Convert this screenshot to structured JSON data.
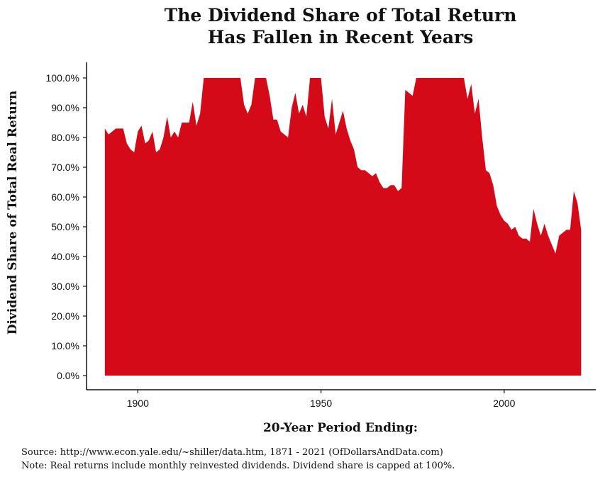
{
  "chart_data": {
    "type": "area",
    "title_line1": "The Dividend Share of Total Return",
    "title_line2": "Has Fallen in Recent Years",
    "xlabel": "20-Year Period Ending:",
    "ylabel": "Dividend Share of Total Real Return",
    "source": "Source:  http://www.econ.yale.edu/~shiller/data.htm, 1871 - 2021 (OfDollarsAndData.com)",
    "note": "Note:  Real returns include monthly reinvested dividends.  Dividend share is capped at 100%.",
    "color": "#d50a18",
    "xlim": [
      1886,
      2025
    ],
    "ylim": [
      0,
      1.0
    ],
    "x_ticks": [
      1900,
      1950,
      2000
    ],
    "x_tick_labels": [
      "1900",
      "1950",
      "2000"
    ],
    "y_ticks": [
      0,
      0.1,
      0.2,
      0.3,
      0.4,
      0.5,
      0.6,
      0.7,
      0.8,
      0.9,
      1.0
    ],
    "y_tick_labels": [
      "0.0%",
      "10.0%",
      "20.0%",
      "30.0%",
      "40.0%",
      "50.0%",
      "60.0%",
      "70.0%",
      "80.0%",
      "90.0%",
      "100.0%"
    ],
    "x": [
      1891,
      1892,
      1893,
      1894,
      1895,
      1896,
      1897,
      1898,
      1899,
      1900,
      1901,
      1902,
      1903,
      1904,
      1905,
      1906,
      1907,
      1908,
      1909,
      1910,
      1911,
      1912,
      1913,
      1914,
      1915,
      1916,
      1917,
      1918,
      1919,
      1920,
      1921,
      1922,
      1923,
      1924,
      1925,
      1926,
      1927,
      1928,
      1929,
      1930,
      1931,
      1932,
      1933,
      1934,
      1935,
      1936,
      1937,
      1938,
      1939,
      1940,
      1941,
      1942,
      1943,
      1944,
      1945,
      1946,
      1947,
      1948,
      1949,
      1950,
      1951,
      1952,
      1953,
      1954,
      1955,
      1956,
      1957,
      1958,
      1959,
      1960,
      1961,
      1962,
      1963,
      1964,
      1965,
      1966,
      1967,
      1968,
      1969,
      1970,
      1971,
      1972,
      1973,
      1974,
      1975,
      1976,
      1977,
      1978,
      1979,
      1980,
      1981,
      1982,
      1983,
      1984,
      1985,
      1986,
      1987,
      1988,
      1989,
      1990,
      1991,
      1992,
      1993,
      1994,
      1995,
      1996,
      1997,
      1998,
      1999,
      2000,
      2001,
      2002,
      2003,
      2004,
      2005,
      2006,
      2007,
      2008,
      2009,
      2010,
      2011,
      2012,
      2013,
      2014,
      2015,
      2016,
      2017,
      2018,
      2019,
      2020,
      2021
    ],
    "values": [
      0.83,
      0.81,
      0.82,
      0.83,
      0.83,
      0.83,
      0.78,
      0.76,
      0.75,
      0.82,
      0.84,
      0.78,
      0.79,
      0.82,
      0.75,
      0.76,
      0.8,
      0.87,
      0.8,
      0.82,
      0.8,
      0.85,
      0.85,
      0.85,
      0.92,
      0.84,
      0.88,
      1.0,
      1.0,
      1.0,
      1.0,
      1.0,
      1.0,
      1.0,
      1.0,
      1.0,
      1.0,
      1.0,
      0.91,
      0.88,
      0.91,
      1.0,
      1.0,
      1.0,
      1.0,
      0.94,
      0.86,
      0.86,
      0.82,
      0.81,
      0.8,
      0.9,
      0.95,
      0.88,
      0.91,
      0.87,
      1.0,
      1.0,
      1.0,
      1.0,
      0.87,
      0.83,
      0.93,
      0.81,
      0.85,
      0.89,
      0.83,
      0.79,
      0.76,
      0.7,
      0.69,
      0.69,
      0.68,
      0.67,
      0.68,
      0.65,
      0.63,
      0.63,
      0.64,
      0.64,
      0.62,
      0.63,
      0.96,
      0.95,
      0.94,
      1.0,
      1.0,
      1.0,
      1.0,
      1.0,
      1.0,
      1.0,
      1.0,
      1.0,
      1.0,
      1.0,
      1.0,
      1.0,
      1.0,
      0.93,
      0.98,
      0.88,
      0.93,
      0.8,
      0.69,
      0.68,
      0.64,
      0.57,
      0.54,
      0.52,
      0.51,
      0.49,
      0.5,
      0.47,
      0.46,
      0.46,
      0.45,
      0.56,
      0.51,
      0.47,
      0.51,
      0.47,
      0.44,
      0.41,
      0.47,
      0.48,
      0.49,
      0.49,
      0.62,
      0.58,
      0.49
    ]
  }
}
